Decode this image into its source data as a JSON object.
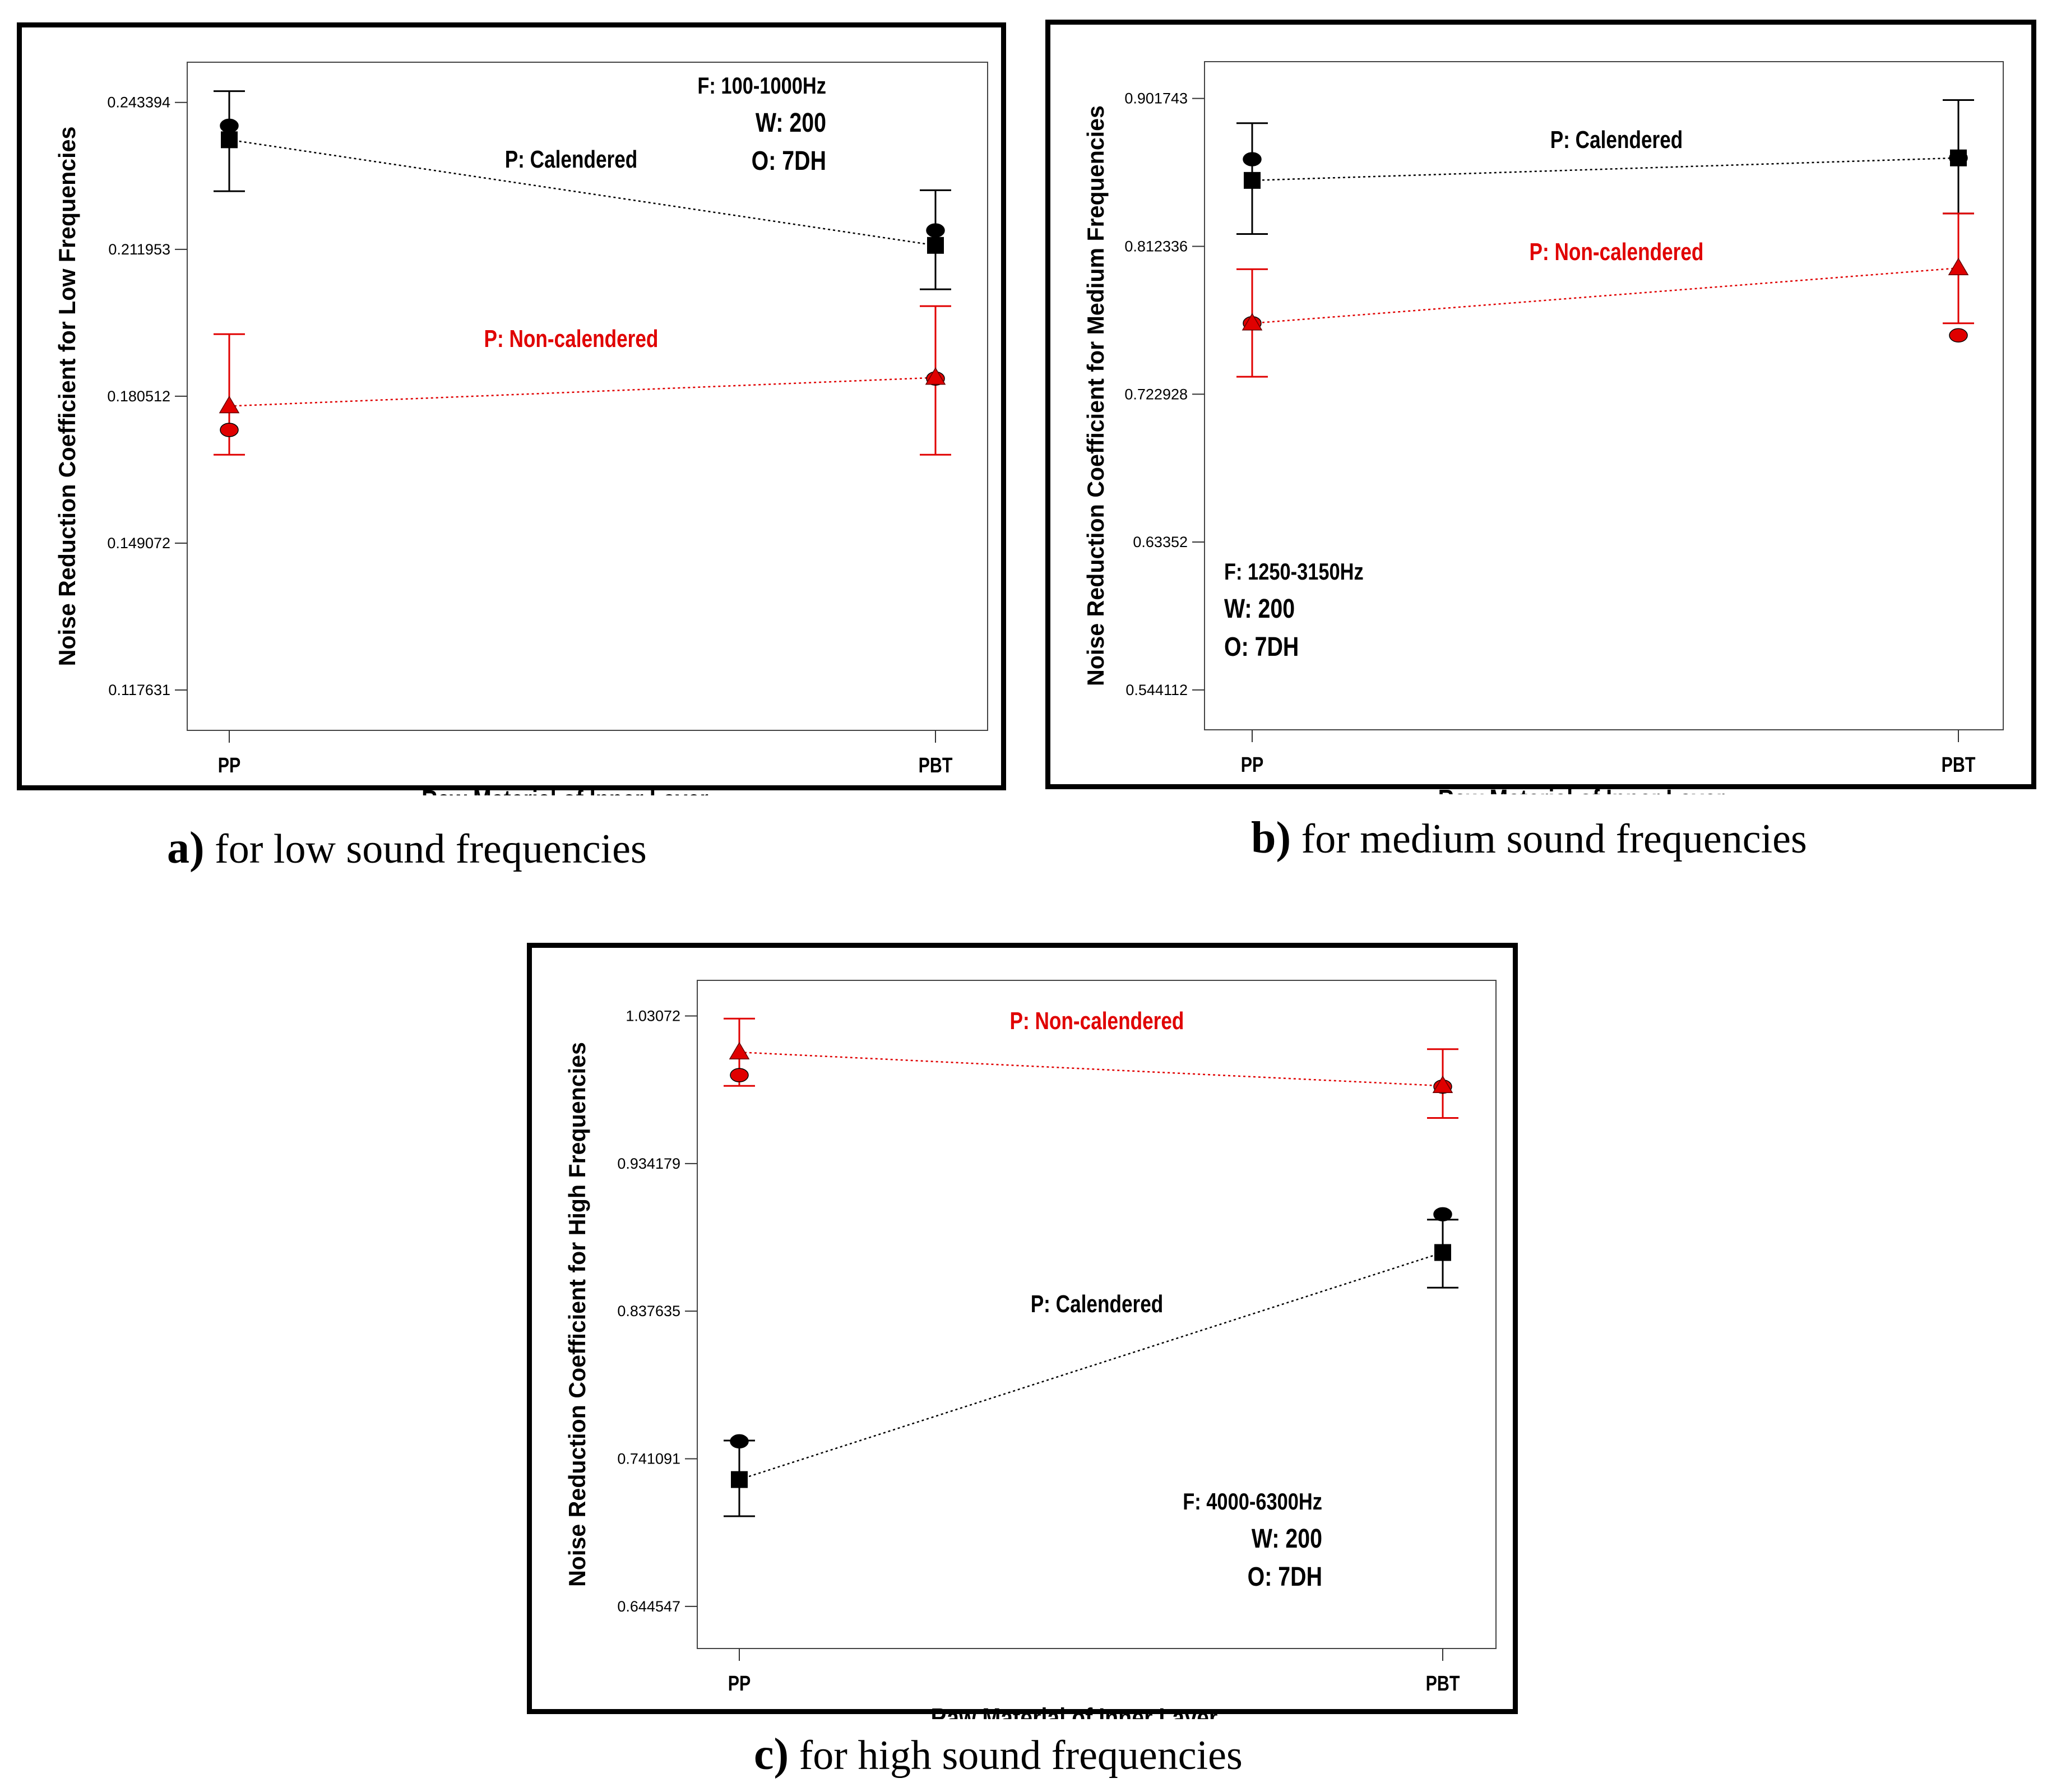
{
  "colors": {
    "calendered": "#000000",
    "non_calendered": "#e00000"
  },
  "captions": [
    {
      "letter": "a)",
      "text": " for low sound frequencies"
    },
    {
      "letter": "b)",
      "text": " for medium sound frequencies"
    },
    {
      "letter": "c)",
      "text": " for high sound frequencies"
    }
  ],
  "chart_data": [
    {
      "type": "line",
      "ylabel": "Noise Reduction Coefficient for Low Frequencies",
      "xlabel": "Raw Material of Inner Layer",
      "categories": [
        "PP",
        "PBT"
      ],
      "yticks": [
        "0.117631",
        "0.149072",
        "0.180512",
        "0.211953",
        "0.243394"
      ],
      "ylim": [
        0.109,
        0.252
      ],
      "info": [
        "F: 100-1000Hz",
        "W: 200",
        "O: 7DH"
      ],
      "series": [
        {
          "name": "P: Calendered",
          "marker": "square",
          "values": [
            0.2354,
            0.2128
          ],
          "circles": [
            0.2384,
            0.216
          ],
          "err_low": [
            0.2244,
            0.2034
          ],
          "err_high": [
            0.2458,
            0.2246
          ]
        },
        {
          "name": "P: Non-calendered",
          "marker": "triangle",
          "values": [
            0.1784,
            0.1845
          ],
          "circles": [
            0.1733,
            0.1843
          ],
          "err_low": [
            0.168,
            0.168
          ],
          "err_high": [
            0.1938,
            0.1998
          ]
        }
      ]
    },
    {
      "type": "line",
      "ylabel": "Noise Reduction Coefficient for Medium Frequencies",
      "xlabel": "Raw Material of Inner Layer",
      "categories": [
        "PP",
        "PBT"
      ],
      "yticks": [
        "0.544112",
        "0.63352",
        "0.722928",
        "0.812336",
        "0.901743"
      ],
      "ylim": [
        0.52,
        0.924
      ],
      "info": [
        "F: 1250-3150Hz",
        "W: 200",
        "O: 7DH"
      ],
      "series": [
        {
          "name": "P: Calendered",
          "marker": "square",
          "values": [
            0.8522,
            0.8658
          ],
          "circles": [
            0.865,
            0.8658
          ],
          "err_low": [
            0.8198,
            0.8322
          ],
          "err_high": [
            0.8868,
            0.9008
          ]
        },
        {
          "name": "P: Non-calendered",
          "marker": "triangle",
          "values": [
            0.7658,
            0.7992
          ],
          "circles": [
            0.7658,
            0.7585
          ],
          "err_low": [
            0.7335,
            0.7658
          ],
          "err_high": [
            0.7985,
            0.8322
          ]
        }
      ]
    },
    {
      "type": "line",
      "ylabel": "Noise Reduction Coefficient for High Frequencies",
      "xlabel": "Raw Material of Inner Layer",
      "categories": [
        "PP",
        "PBT"
      ],
      "yticks": [
        "0.644547",
        "0.741091",
        "0.837635",
        "0.934179",
        "1.03072"
      ],
      "ylim": [
        0.617,
        1.054
      ],
      "info": [
        "F: 4000-6300Hz",
        "W: 200",
        "O: 7DH"
      ],
      "series": [
        {
          "name": "P: Calendered",
          "marker": "square",
          "values": [
            0.7275,
            0.876
          ],
          "circles": [
            0.7525,
            0.901
          ],
          "err_low": [
            0.7035,
            0.853
          ],
          "err_high": [
            0.753,
            0.8975
          ]
        },
        {
          "name": "P: Non-calendered",
          "marker": "triangle",
          "values": [
            1.007,
            0.985
          ],
          "circles": [
            0.992,
            0.9845
          ],
          "err_low": [
            0.985,
            0.964
          ],
          "err_high": [
            1.029,
            1.009
          ]
        }
      ]
    }
  ]
}
